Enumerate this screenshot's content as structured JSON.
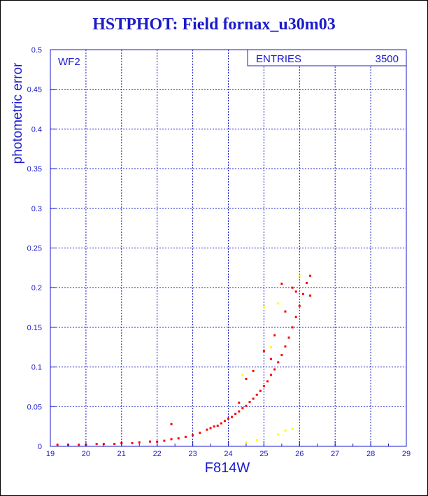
{
  "chart_data": {
    "type": "scatter",
    "title": "HSTPHOT: Field fornax_u30m03",
    "xlabel": "F814W",
    "ylabel": "photometric error",
    "panel_label": "WF2",
    "stats_box": {
      "label": "ENTRIES",
      "value": "3500"
    },
    "xlim": [
      19,
      29
    ],
    "ylim": [
      0,
      0.5
    ],
    "x_ticks": [
      19,
      20,
      21,
      22,
      23,
      24,
      25,
      26,
      27,
      28,
      29
    ],
    "y_ticks": [
      0,
      0.05,
      0.1,
      0.15,
      0.2,
      0.25,
      0.3,
      0.35,
      0.4,
      0.45,
      0.5
    ],
    "grid": true,
    "colors": {
      "axis": "#1a1acc",
      "grid": "#1a1acc",
      "main_series": "#ff0000",
      "minor_series": "#ffff00"
    },
    "series": [
      {
        "color": "#ff0000",
        "points": [
          [
            19.2,
            0.002
          ],
          [
            19.5,
            0.002
          ],
          [
            19.8,
            0.002
          ],
          [
            20.0,
            0.002
          ],
          [
            20.3,
            0.003
          ],
          [
            20.5,
            0.003
          ],
          [
            20.8,
            0.003
          ],
          [
            21.0,
            0.004
          ],
          [
            21.3,
            0.004
          ],
          [
            21.5,
            0.005
          ],
          [
            21.8,
            0.006
          ],
          [
            22.0,
            0.006
          ],
          [
            22.2,
            0.007
          ],
          [
            22.4,
            0.009
          ],
          [
            22.4,
            0.028
          ],
          [
            22.6,
            0.01
          ],
          [
            22.8,
            0.012
          ],
          [
            23.0,
            0.014
          ],
          [
            23.2,
            0.017
          ],
          [
            23.4,
            0.021
          ],
          [
            23.5,
            0.023
          ],
          [
            23.6,
            0.025
          ],
          [
            23.7,
            0.026
          ],
          [
            23.8,
            0.029
          ],
          [
            23.9,
            0.032
          ],
          [
            24.0,
            0.035
          ],
          [
            24.1,
            0.037
          ],
          [
            24.2,
            0.041
          ],
          [
            24.3,
            0.044
          ],
          [
            24.4,
            0.048
          ],
          [
            24.5,
            0.051
          ],
          [
            24.6,
            0.056
          ],
          [
            24.7,
            0.06
          ],
          [
            24.8,
            0.065
          ],
          [
            24.9,
            0.07
          ],
          [
            25.0,
            0.076
          ],
          [
            25.1,
            0.082
          ],
          [
            25.2,
            0.09
          ],
          [
            25.3,
            0.097
          ],
          [
            25.4,
            0.106
          ],
          [
            25.5,
            0.115
          ],
          [
            25.6,
            0.126
          ],
          [
            25.7,
            0.137
          ],
          [
            25.8,
            0.15
          ],
          [
            25.9,
            0.163
          ],
          [
            26.0,
            0.177
          ],
          [
            26.1,
            0.192
          ],
          [
            26.2,
            0.206
          ],
          [
            26.3,
            0.215
          ],
          [
            26.3,
            0.19
          ],
          [
            24.5,
            0.085
          ],
          [
            24.7,
            0.095
          ],
          [
            25.0,
            0.12
          ],
          [
            25.3,
            0.14
          ],
          [
            25.6,
            0.17
          ],
          [
            25.8,
            0.2
          ],
          [
            25.5,
            0.205
          ],
          [
            24.3,
            0.055
          ],
          [
            25.2,
            0.11
          ],
          [
            25.9,
            0.195
          ]
        ]
      },
      {
        "color": "#ffff00",
        "points": [
          [
            24.5,
            0.005
          ],
          [
            25.4,
            0.015
          ],
          [
            25.6,
            0.02
          ],
          [
            25.8,
            0.022
          ],
          [
            24.8,
            0.008
          ],
          [
            25.0,
            0.175
          ],
          [
            25.4,
            0.18
          ],
          [
            25.2,
            0.125
          ],
          [
            26.0,
            0.215
          ],
          [
            24.4,
            0.09
          ]
        ]
      }
    ]
  }
}
